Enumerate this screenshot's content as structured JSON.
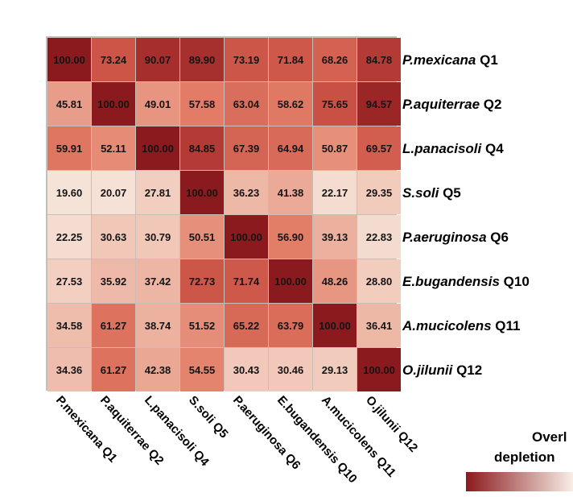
{
  "chart_data": {
    "type": "heatmap",
    "rows": [
      "P.mexicana Q1",
      "P.aquiterrae  Q2",
      "L.panacisoli  Q4",
      "S.soli  Q5",
      "P.aeruginosa Q6",
      "E.bugandensis  Q10",
      "A.mucicolens Q11",
      "O.jilunii Q12"
    ],
    "columns": [
      "P.mexicana Q1",
      "P.aquiterrae  Q2",
      "L.panacisoli  Q4",
      "S.soli  Q5",
      "P.aeruginosa Q6",
      "E.bugandensis  Q10",
      "A.mucicolens Q11",
      "O.jilunii Q12"
    ],
    "values": [
      [
        100.0,
        73.24,
        90.07,
        89.9,
        73.19,
        71.84,
        68.26,
        84.78
      ],
      [
        45.81,
        100.0,
        49.01,
        57.58,
        63.04,
        58.62,
        75.65,
        94.57
      ],
      [
        59.91,
        52.11,
        100.0,
        84.85,
        67.39,
        64.94,
        50.87,
        69.57
      ],
      [
        19.6,
        20.07,
        27.81,
        100.0,
        36.23,
        41.38,
        22.17,
        29.35
      ],
      [
        22.25,
        30.63,
        30.79,
        50.51,
        100.0,
        56.9,
        39.13,
        22.83
      ],
      [
        27.53,
        35.92,
        37.42,
        72.73,
        71.74,
        100.0,
        48.26,
        28.8
      ],
      [
        34.58,
        61.27,
        38.74,
        51.52,
        65.22,
        63.79,
        100.0,
        36.41
      ],
      [
        34.36,
        61.27,
        42.38,
        54.55,
        30.43,
        30.46,
        29.13,
        100.0
      ]
    ],
    "value_range": [
      15,
      100
    ],
    "legend": {
      "title_lines": [
        "Overl",
        "depletion"
      ],
      "color_low": "#f8eee6",
      "color_high": "#8b1a1e"
    }
  }
}
